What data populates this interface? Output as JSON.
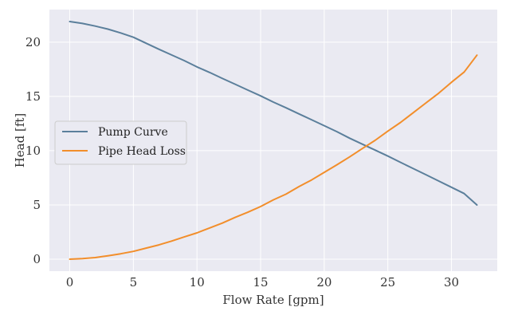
{
  "chart_data": {
    "type": "line",
    "title": "",
    "xlabel": "Flow Rate [gpm]",
    "ylabel": "Head [ft]",
    "xlim": [
      -1.6,
      33.6
    ],
    "ylim": [
      -1.1,
      23.0
    ],
    "xticks": [
      0,
      5,
      10,
      15,
      20,
      25,
      30
    ],
    "yticks": [
      0,
      5,
      10,
      15,
      20
    ],
    "grid": true,
    "legend_position": "center-left",
    "background_color": "#eaeaf2",
    "series": [
      {
        "name": "Pump Curve",
        "color": "#5b7f9b",
        "x": [
          0,
          1,
          2,
          3,
          4,
          5,
          6,
          7,
          8,
          9,
          10,
          11,
          12,
          13,
          14,
          15,
          16,
          17,
          18,
          19,
          20,
          21,
          22,
          23,
          24,
          25,
          26,
          27,
          28,
          29,
          30,
          31,
          32
        ],
        "y": [
          21.9,
          21.72,
          21.48,
          21.2,
          20.85,
          20.45,
          19.9,
          19.35,
          18.82,
          18.3,
          17.72,
          17.2,
          16.65,
          16.12,
          15.58,
          15.05,
          14.48,
          13.95,
          13.4,
          12.85,
          12.3,
          11.75,
          11.15,
          10.6,
          10.05,
          9.5,
          8.92,
          8.35,
          7.78,
          7.2,
          6.63,
          6.05,
          5.0
        ]
      },
      {
        "name": "Pipe Head Loss",
        "color": "#f28e2b",
        "x": [
          0,
          1,
          2,
          3,
          4,
          5,
          6,
          7,
          8,
          9,
          10,
          11,
          12,
          13,
          14,
          15,
          16,
          17,
          18,
          19,
          20,
          21,
          22,
          23,
          24,
          25,
          26,
          27,
          28,
          29,
          30,
          31,
          32
        ],
        "y": [
          0.0,
          0.05,
          0.15,
          0.32,
          0.5,
          0.72,
          1.02,
          1.32,
          1.67,
          2.05,
          2.43,
          2.88,
          3.33,
          3.85,
          4.33,
          4.85,
          5.47,
          6.0,
          6.68,
          7.3,
          8.0,
          8.7,
          9.43,
          10.2,
          10.95,
          11.8,
          12.6,
          13.5,
          14.4,
          15.3,
          16.3,
          17.25,
          18.8
        ]
      }
    ]
  }
}
